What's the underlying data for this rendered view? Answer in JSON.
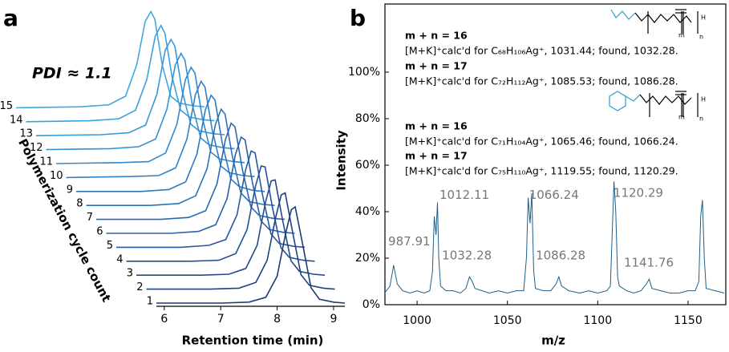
{
  "chart_data": [
    {
      "type": "waterfall",
      "panel": "a",
      "x_label": "Retention time (min)",
      "y_label": "Polymerization cycle count",
      "annotation": "PDI ≈ 1.1",
      "x": [
        5.86,
        7.0,
        7.5,
        7.8,
        8.0,
        8.15,
        8.25,
        8.32,
        8.45,
        8.6,
        8.75,
        9.0,
        9.2
      ],
      "xlim": [
        5.86,
        9.2
      ],
      "xticks": [
        6,
        7,
        8,
        9
      ],
      "series": [
        {
          "name": "1",
          "color": "#1c3a78",
          "values": [
            0,
            0,
            0.01,
            0.06,
            0.28,
            0.72,
            0.97,
            1.0,
            0.62,
            0.16,
            0.04,
            0.01,
            0
          ]
        },
        {
          "name": "2",
          "color": "#1f4282",
          "values": [
            0,
            0,
            0.01,
            0.07,
            0.3,
            0.74,
            0.98,
            1.0,
            0.6,
            0.15,
            0.04,
            0.01,
            0
          ]
        },
        {
          "name": "3",
          "color": "#22498c",
          "values": [
            0,
            0,
            0.01,
            0.07,
            0.31,
            0.76,
            0.98,
            0.99,
            0.58,
            0.15,
            0.04,
            0.01,
            0
          ]
        },
        {
          "name": "4",
          "color": "#245196",
          "values": [
            0,
            0,
            0.01,
            0.08,
            0.33,
            0.78,
            0.99,
            0.98,
            0.56,
            0.14,
            0.04,
            0.01,
            0
          ]
        },
        {
          "name": "5",
          "color": "#26599f",
          "values": [
            0,
            0,
            0.02,
            0.08,
            0.34,
            0.8,
            1.0,
            0.98,
            0.55,
            0.14,
            0.04,
            0.01,
            0
          ]
        },
        {
          "name": "6",
          "color": "#2861a8",
          "values": [
            0,
            0,
            0.02,
            0.09,
            0.36,
            0.82,
            1.0,
            0.97,
            0.53,
            0.13,
            0.04,
            0.01,
            0
          ]
        },
        {
          "name": "7",
          "color": "#2a69b1",
          "values": [
            0,
            0,
            0.02,
            0.09,
            0.37,
            0.83,
            1.0,
            0.96,
            0.52,
            0.13,
            0.04,
            0.01,
            0
          ]
        },
        {
          "name": "8",
          "color": "#2c71b9",
          "values": [
            0,
            0,
            0.02,
            0.1,
            0.38,
            0.84,
            1.0,
            0.95,
            0.51,
            0.13,
            0.04,
            0.01,
            0
          ]
        },
        {
          "name": "9",
          "color": "#2e79c1",
          "values": [
            0,
            0,
            0.02,
            0.1,
            0.39,
            0.85,
            1.0,
            0.95,
            0.5,
            0.13,
            0.05,
            0.01,
            0
          ]
        },
        {
          "name": "10",
          "color": "#3081c8",
          "values": [
            0,
            0.01,
            0.02,
            0.1,
            0.4,
            0.86,
            1.0,
            0.94,
            0.49,
            0.12,
            0.05,
            0.02,
            0.01
          ]
        },
        {
          "name": "11",
          "color": "#3289ce",
          "values": [
            0,
            0.01,
            0.02,
            0.11,
            0.41,
            0.87,
            1.0,
            0.94,
            0.48,
            0.12,
            0.05,
            0.02,
            0.01
          ]
        },
        {
          "name": "12",
          "color": "#3491d4",
          "values": [
            0,
            0.01,
            0.03,
            0.11,
            0.42,
            0.88,
            1.0,
            0.93,
            0.47,
            0.12,
            0.05,
            0.02,
            0.01
          ]
        },
        {
          "name": "13",
          "color": "#3799d9",
          "values": [
            0,
            0.01,
            0.03,
            0.11,
            0.43,
            0.89,
            1.0,
            0.93,
            0.46,
            0.12,
            0.05,
            0.02,
            0.01
          ]
        },
        {
          "name": "14",
          "color": "#3aa1dd",
          "values": [
            0,
            0.01,
            0.03,
            0.12,
            0.44,
            0.89,
            1.0,
            0.92,
            0.46,
            0.12,
            0.05,
            0.02,
            0.01
          ]
        },
        {
          "name": "15",
          "color": "#3fa9e0",
          "values": [
            0,
            0.01,
            0.03,
            0.12,
            0.45,
            0.9,
            1.0,
            0.92,
            0.45,
            0.12,
            0.05,
            0.02,
            0.01
          ]
        }
      ]
    },
    {
      "type": "line",
      "panel": "b",
      "x_label": "m/z",
      "y_label": "Intensity",
      "color": "#1d5f8a",
      "x": [
        982,
        985,
        987,
        989,
        992,
        996,
        1000,
        1004,
        1007,
        1008.5,
        1009.5,
        1010.5,
        1011.3,
        1012,
        1013,
        1016,
        1020,
        1024,
        1027,
        1029,
        1030.5,
        1032,
        1036,
        1040,
        1045,
        1050,
        1055,
        1059,
        1060.5,
        1061.5,
        1062.5,
        1063.5,
        1064.5,
        1065.5,
        1070,
        1074,
        1077,
        1078.5,
        1080,
        1084,
        1090,
        1095,
        1100,
        1105,
        1107,
        1108,
        1109,
        1110,
        1111,
        1112,
        1116,
        1120,
        1124,
        1127,
        1128.5,
        1130,
        1135,
        1140,
        1145,
        1150,
        1154,
        1156,
        1157,
        1158,
        1159,
        1160,
        1165,
        1170
      ],
      "values": [
        5,
        8,
        17,
        9,
        6,
        5,
        6,
        5,
        6,
        14,
        38,
        30,
        44,
        20,
        8,
        6,
        6,
        5,
        7,
        12,
        10,
        7,
        6,
        5,
        6,
        5,
        6,
        6,
        20,
        46,
        35,
        48,
        15,
        7,
        6,
        6,
        9,
        12,
        8,
        6,
        5,
        6,
        5,
        6,
        8,
        30,
        53,
        40,
        12,
        8,
        6,
        5,
        6,
        9,
        11,
        7,
        6,
        5,
        5,
        6,
        6,
        10,
        38,
        45,
        20,
        7,
        6,
        5
      ],
      "xlim": [
        982.2,
        1170.9
      ],
      "xticks": [
        1000,
        1050,
        1100,
        1150
      ],
      "ylim": [
        0,
        129.3
      ],
      "yticks": [
        {
          "value": 0,
          "label": "0%"
        },
        {
          "value": 20,
          "label": "20%"
        },
        {
          "value": 40,
          "label": "40%"
        },
        {
          "value": 60,
          "label": "60%"
        },
        {
          "value": 80,
          "label": "80%"
        },
        {
          "value": 100,
          "label": "100%"
        }
      ],
      "peak_labels": [
        {
          "text": "987.91",
          "x": 984,
          "y": 27
        },
        {
          "text": "1012.11",
          "x": 1012.4,
          "y": 47
        },
        {
          "text": "1032.28",
          "x": 1013.8,
          "y": 21
        },
        {
          "text": "1066.24",
          "x": 1062,
          "y": 47
        },
        {
          "text": "1086.28",
          "x": 1065.7,
          "y": 21
        },
        {
          "text": "1120.29",
          "x": 1108.7,
          "y": 48
        },
        {
          "text": "1141.76",
          "x": 1114.5,
          "y": 18
        }
      ],
      "assignments": [
        {
          "label": "m + n = 16",
          "text": "[M+K]⁺calc'd for C₆₈H₁₀₆Ag⁺, 1031.44; found, 1032.28."
        },
        {
          "label": "m + n = 17",
          "text": "[M+K]⁺calc'd for C₇₂H₁₁₂Ag⁺, 1085.53; found, 1086.28."
        },
        {
          "label": "m + n = 16",
          "text": "[M+K]⁺calc'd for C₇₁H₁₀₄Ag⁺, 1065.46; found, 1066.24."
        },
        {
          "label": "m + n = 17",
          "text": "[M+K]⁺calc'd for C₇₅H₁₁₀Ag⁺, 1119.55; found, 1120.29."
        }
      ],
      "structure_labels": [
        "H",
        "m",
        "n"
      ]
    }
  ]
}
